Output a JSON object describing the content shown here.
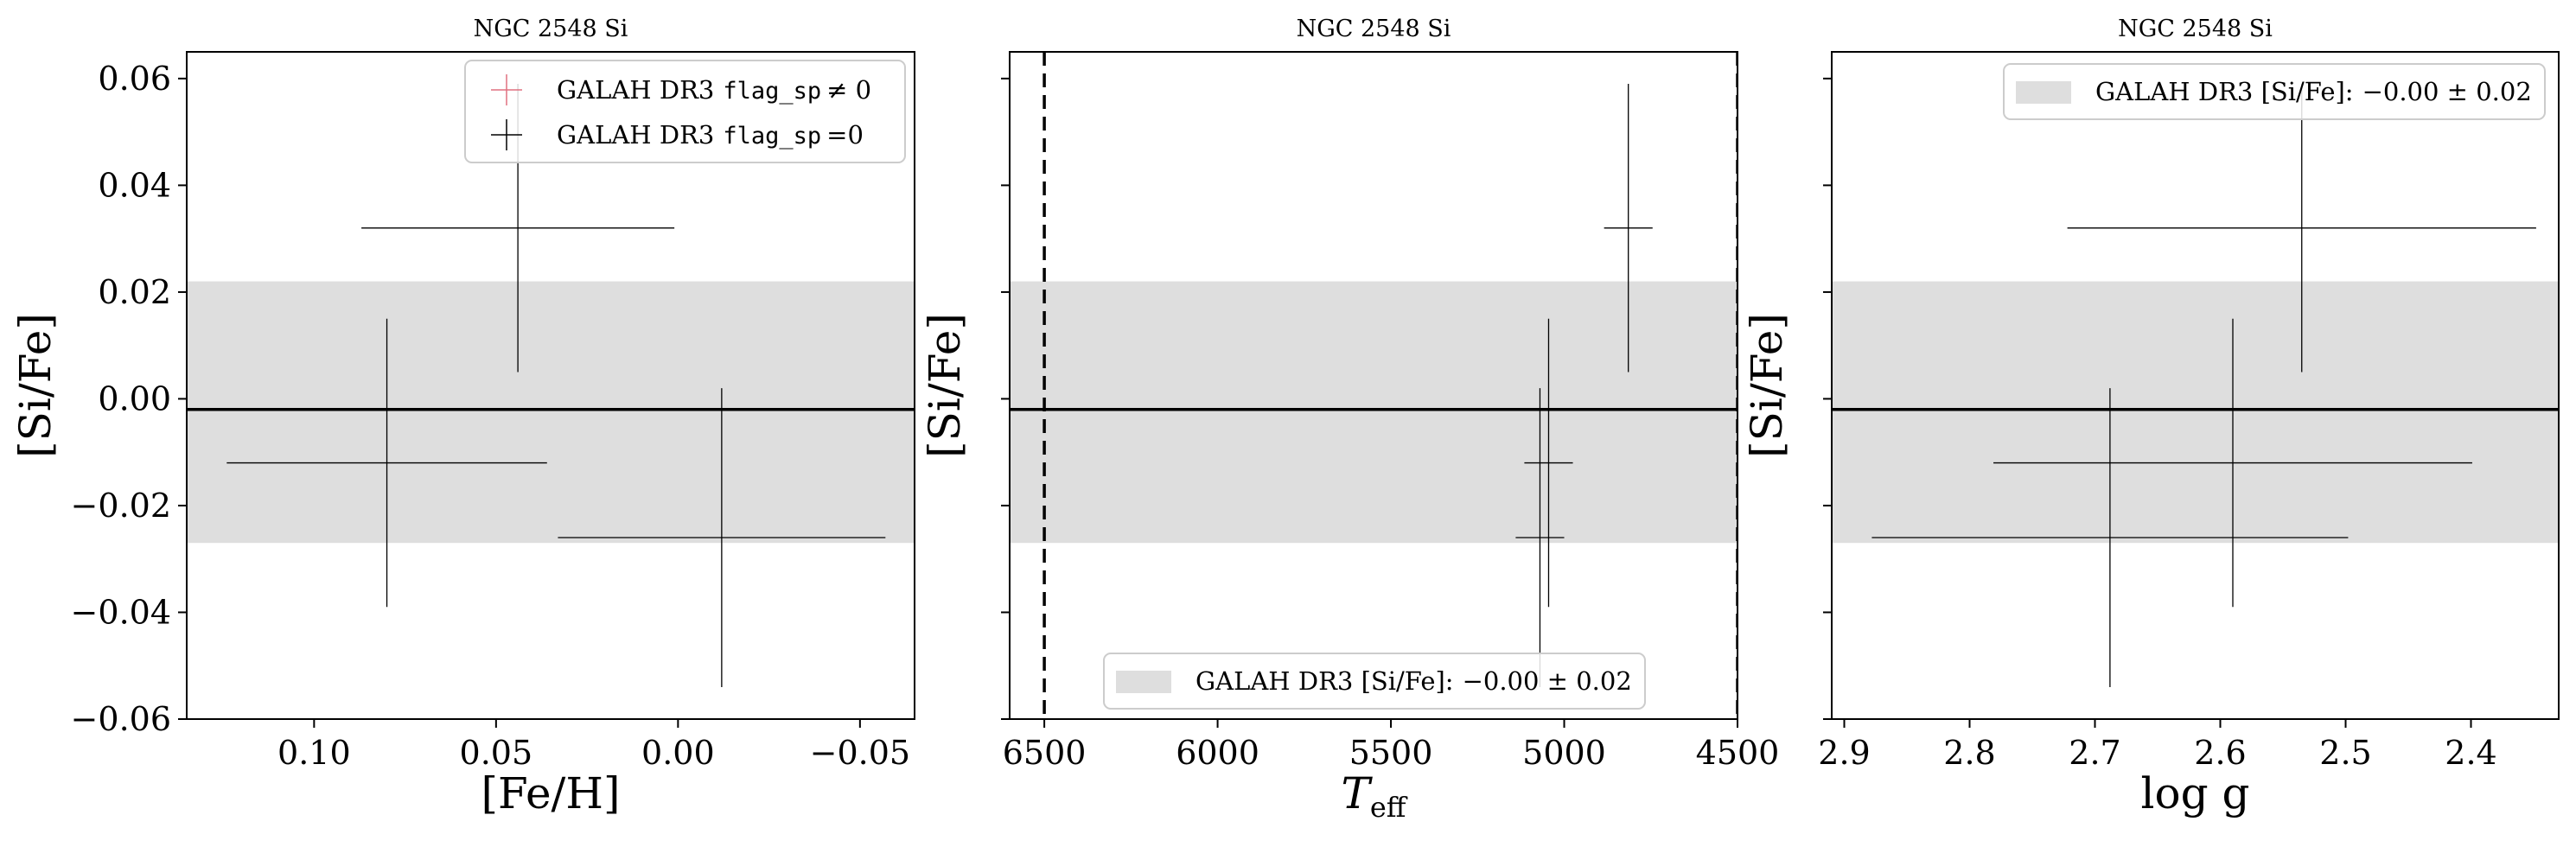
{
  "chart_data": [
    {
      "type": "scatter",
      "title": "NGC 2548 Si",
      "xlabel": "[Fe/H]",
      "ylabel": "[Si/Fe]",
      "x_ticks": [
        "0.10",
        "0.05",
        "0.00",
        "−0.05"
      ],
      "y_ticks": [
        "0.06",
        "0.04",
        "0.02",
        "0.00",
        "−0.02",
        "−0.04",
        "−0.06"
      ],
      "y_tick_values": [
        0.06,
        0.04,
        0.02,
        0.0,
        -0.02,
        -0.04,
        -0.06
      ],
      "x_tick_values": [
        0.1,
        0.05,
        0.0,
        -0.05
      ],
      "xlim": [
        0.135,
        -0.065
      ],
      "ylim": [
        -0.06,
        0.065
      ],
      "x_inverted": true,
      "mean_line": -0.002,
      "band": [
        -0.027,
        0.022
      ],
      "legend_position": "top-right",
      "legend": [
        {
          "label": "GALAH DR3",
          "code": "flag_sp",
          "suffix": "≠ 0",
          "color": "#e07080"
        },
        {
          "label": "GALAH DR3",
          "code": "flag_sp",
          "suffix": "=0",
          "color": "#000000"
        }
      ],
      "points": [
        {
          "x": 0.044,
          "y": 0.032,
          "xerr": 0.043,
          "yerr": 0.027
        },
        {
          "x": 0.08,
          "y": -0.012,
          "xerr": 0.044,
          "yerr": 0.027
        },
        {
          "x": -0.012,
          "y": -0.026,
          "xerr": 0.045,
          "yerr": 0.028
        }
      ]
    },
    {
      "type": "scatter",
      "title": "NGC 2548 Si",
      "xlabel": "T",
      "xlabel_sub": "eff",
      "ylabel": "[Si/Fe]",
      "x_ticks": [
        "6500",
        "6000",
        "5500",
        "5000",
        "4500"
      ],
      "x_tick_values": [
        6500,
        6000,
        5500,
        5000,
        4500
      ],
      "xlim": [
        6600,
        4500
      ],
      "ylim": [
        -0.06,
        0.065
      ],
      "x_inverted": true,
      "mean_line": -0.002,
      "band": [
        -0.027,
        0.022
      ],
      "vlines": [
        6500,
        4500
      ],
      "legend_position": "bottom-center",
      "legend": [
        {
          "label": "GALAH DR3 [Si/Fe]:",
          "value": "−0.00 ± 0.02"
        }
      ],
      "points": [
        {
          "x": 4815,
          "y": 0.032,
          "xerr": 70,
          "yerr": 0.027
        },
        {
          "x": 5045,
          "y": -0.012,
          "xerr": 70,
          "yerr": 0.027
        },
        {
          "x": 5070,
          "y": -0.026,
          "xerr": 70,
          "yerr": 0.028
        }
      ]
    },
    {
      "type": "scatter",
      "title": "NGC 2548 Si",
      "xlabel": "log g",
      "ylabel": "[Si/Fe]",
      "x_ticks": [
        "2.9",
        "2.8",
        "2.7",
        "2.6",
        "2.5",
        "2.4"
      ],
      "x_tick_values": [
        2.9,
        2.8,
        2.7,
        2.6,
        2.5,
        2.4
      ],
      "xlim": [
        2.91,
        2.33
      ],
      "ylim": [
        -0.06,
        0.065
      ],
      "x_inverted": true,
      "mean_line": -0.002,
      "band": [
        -0.027,
        0.022
      ],
      "legend_position": "top-right",
      "legend": [
        {
          "label": "GALAH DR3 [Si/Fe]:",
          "value": "−0.00 ± 0.02"
        }
      ],
      "points": [
        {
          "x": 2.535,
          "y": 0.032,
          "xerr": 0.187,
          "yerr": 0.027
        },
        {
          "x": 2.59,
          "y": -0.012,
          "xerr": 0.191,
          "yerr": 0.027
        },
        {
          "x": 2.688,
          "y": -0.026,
          "xerr": 0.19,
          "yerr": 0.028
        }
      ]
    }
  ],
  "colors": {
    "band": "#dedede",
    "axis": "#000000",
    "flag_nonzero": "#e07080"
  }
}
